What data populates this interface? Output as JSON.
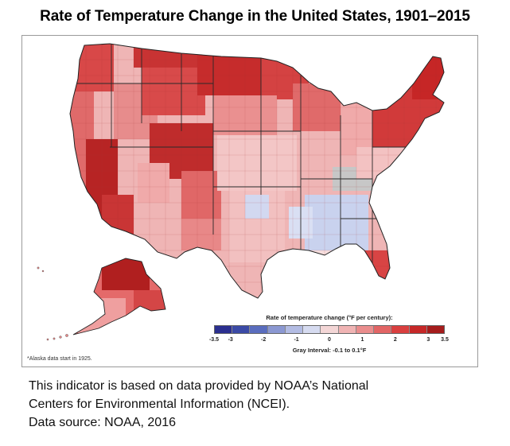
{
  "title": "Rate of Temperature Change in the United States, 1901–2015",
  "legend": {
    "title": "Rate of temperature change (°F per century):",
    "colors": [
      "#2b2f8f",
      "#3b4aa6",
      "#5a6dbe",
      "#8b98d2",
      "#b3bce3",
      "#d6dbf0",
      "#f3d6d6",
      "#f0b4b4",
      "#ea8d8d",
      "#e26565",
      "#d93f3f",
      "#c62828",
      "#a51c1c"
    ],
    "ticks": [
      {
        "label": "-3.5",
        "value": -3.5
      },
      {
        "label": "-3",
        "value": -3
      },
      {
        "label": "-2",
        "value": -2
      },
      {
        "label": "-1",
        "value": -1
      },
      {
        "label": "0",
        "value": 0
      },
      {
        "label": "1",
        "value": 1
      },
      {
        "label": "2",
        "value": 2
      },
      {
        "label": "3",
        "value": 3
      },
      {
        "label": "3.5",
        "value": 3.5
      }
    ],
    "gray_interval": "Gray Interval: -0.1 to 0.1°F",
    "gray_color": "#b9b9b9"
  },
  "footnote": "*Alaska data start in 1925.",
  "caption": {
    "line1": "This indicator is based on data provided by NOAA’s National",
    "line2": "Centers for Environmental Information (NCEI).",
    "line3": "Data source: NOAA, 2016"
  }
}
